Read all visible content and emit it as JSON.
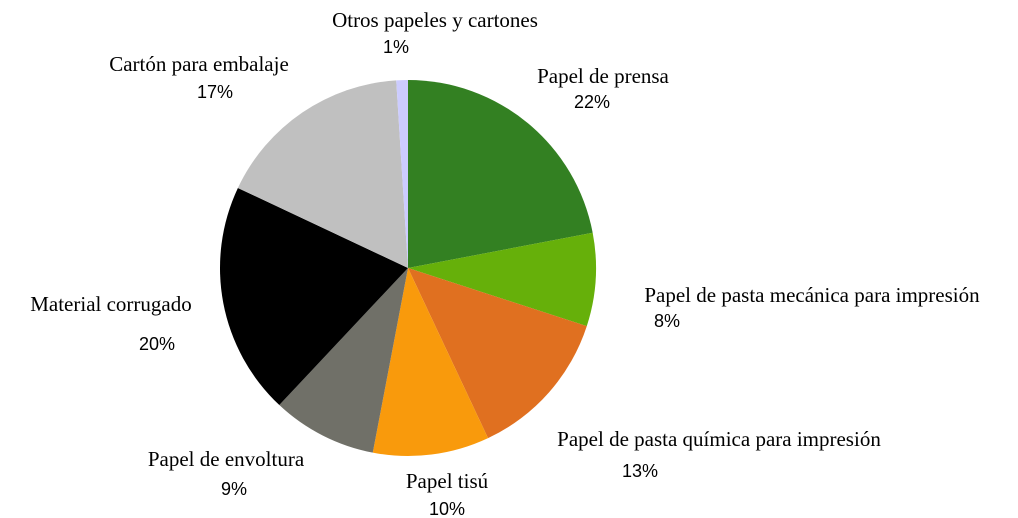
{
  "chart_data": {
    "type": "pie",
    "categories": [
      "Papel de prensa",
      "Papel de pasta mecánica para impresión",
      "Papel de pasta química para impresión",
      "Papel tisú",
      "Papel de envoltura",
      "Material corrugado",
      "Cartón para embalaje",
      "Otros papeles y cartones"
    ],
    "values": [
      22,
      8,
      13,
      10,
      9,
      20,
      17,
      1
    ],
    "value_labels": [
      "22%",
      "8%",
      "13%",
      "10%",
      "9%",
      "20%",
      "17%",
      "1%"
    ],
    "colors": [
      "#338022",
      "#66b00a",
      "#e07020",
      "#f99a0c",
      "#707068",
      "#000000",
      "#c0c0c0",
      "#ccccff"
    ]
  }
}
